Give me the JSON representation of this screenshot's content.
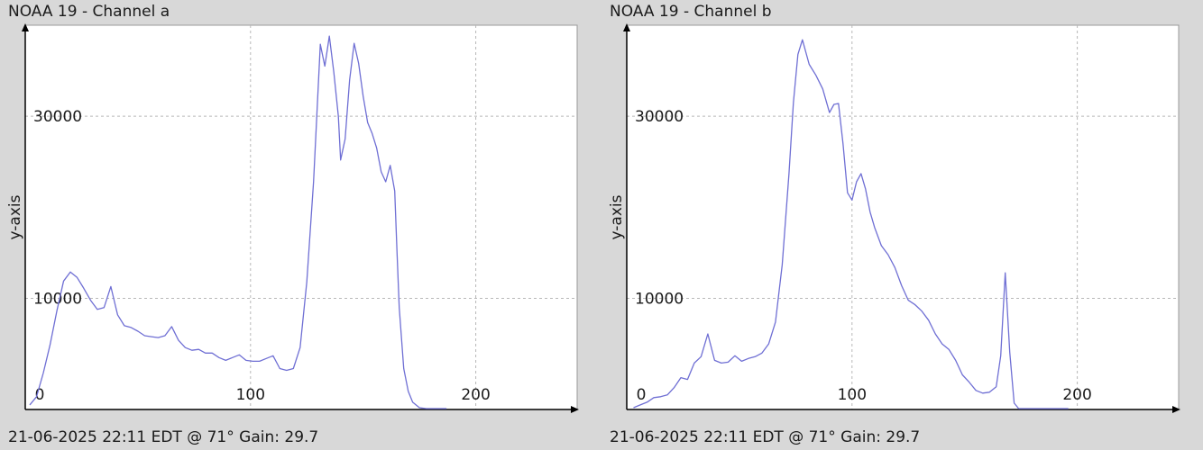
{
  "chart_data": [
    {
      "type": "line",
      "title": "NOAA 19 - Channel a",
      "footer": "21-06-2025 22:11 EDT @ 71° Gain: 29.7",
      "ylabel": "y-axis",
      "xlabel": "",
      "xlim": [
        0,
        245
      ],
      "ylim": [
        -2200,
        40000
      ],
      "x_ticks": [
        0,
        100,
        200
      ],
      "y_ticks": [
        10000,
        30000
      ],
      "grid": true,
      "line_color": "#6f6fd4",
      "series": [
        {
          "x": [
            2,
            5,
            8,
            11,
            14,
            17,
            20,
            23,
            26,
            29,
            32,
            35,
            38,
            41,
            44,
            47,
            50,
            53,
            56,
            59,
            62,
            65,
            68,
            71,
            74,
            77,
            80,
            83,
            86,
            89,
            92,
            95,
            98,
            101,
            104,
            107,
            110,
            113,
            116,
            119,
            122,
            125,
            128,
            131,
            133,
            135,
            137,
            139,
            140,
            142,
            144,
            146,
            148,
            150,
            152,
            154,
            156,
            158,
            160,
            162,
            164,
            165,
            166,
            168,
            170,
            172,
            175,
            178,
            181,
            184,
            187
          ],
          "y": [
            -1700,
            -800,
            1800,
            4900,
            8600,
            11900,
            12900,
            12300,
            11100,
            9800,
            8800,
            9000,
            11300,
            8200,
            7000,
            6800,
            6400,
            5900,
            5800,
            5700,
            5900,
            6900,
            5400,
            4600,
            4300,
            4400,
            4000,
            4000,
            3500,
            3200,
            3500,
            3800,
            3200,
            3100,
            3100,
            3400,
            3700,
            2300,
            2100,
            2300,
            4600,
            11800,
            22800,
            37900,
            35500,
            38800,
            34800,
            30000,
            25200,
            27500,
            34000,
            38000,
            35800,
            32200,
            29300,
            28100,
            26500,
            23900,
            22800,
            24600,
            21800,
            15200,
            9000,
            2300,
            -200,
            -1400,
            -2000,
            -2100,
            -2100,
            -2100,
            -2100
          ]
        }
      ]
    },
    {
      "type": "line",
      "title": "NOAA 19 - Channel b",
      "footer": "21-06-2025 22:11 EDT @ 71° Gain: 29.7",
      "ylabel": "y-axis",
      "xlabel": "",
      "xlim": [
        0,
        245
      ],
      "ylim": [
        -2200,
        40000
      ],
      "x_ticks": [
        0,
        100,
        200
      ],
      "y_ticks": [
        10000,
        30000
      ],
      "grid": true,
      "line_color": "#6f6fd4",
      "series": [
        {
          "x": [
            3,
            6,
            9,
            12,
            15,
            18,
            21,
            24,
            27,
            30,
            33,
            36,
            39,
            42,
            45,
            48,
            51,
            54,
            57,
            60,
            63,
            66,
            69,
            72,
            74,
            76,
            78,
            81,
            84,
            87,
            90,
            92,
            94,
            96,
            98,
            100,
            102,
            104,
            106,
            108,
            110,
            113,
            116,
            119,
            122,
            125,
            128,
            131,
            134,
            137,
            140,
            143,
            146,
            149,
            152,
            155,
            158,
            161,
            164,
            166,
            168,
            170,
            172,
            174,
            176,
            178,
            180,
            183,
            187,
            190,
            193,
            196
          ],
          "y": [
            -2000,
            -1700,
            -1400,
            -900,
            -800,
            -600,
            200,
            1300,
            1100,
            2900,
            3600,
            6100,
            3200,
            2900,
            3000,
            3700,
            3100,
            3400,
            3600,
            4000,
            5000,
            7400,
            13700,
            23700,
            31500,
            36800,
            38400,
            35700,
            34500,
            33000,
            30400,
            31300,
            31400,
            27000,
            21600,
            20800,
            22800,
            23700,
            22000,
            19500,
            17800,
            15800,
            14800,
            13400,
            11400,
            9800,
            9300,
            8600,
            7600,
            6100,
            5000,
            4400,
            3200,
            1600,
            800,
            -100,
            -400,
            -300,
            300,
            3700,
            12800,
            4100,
            -1500,
            -2100,
            -2100,
            -2100,
            -2100,
            -2100,
            -2100,
            -2100,
            -2100,
            -2100
          ]
        }
      ]
    }
  ]
}
